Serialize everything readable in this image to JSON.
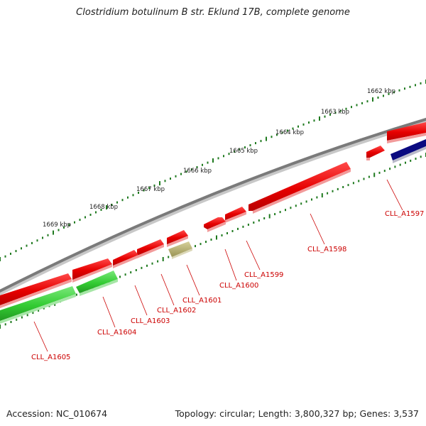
{
  "title": "Clostridium botulinum B str. Eklund 17B, complete genome",
  "footer": {
    "accession": "Accession: NC_010674",
    "summary": "Topology: circular; Length: 3,800,327 bp; Genes: 3,537"
  },
  "colors": {
    "forward_gene": "#e60000",
    "reverse_gene": "#33cc33",
    "rna_gene": "#0a0a80",
    "other_gene": "#b5ae6a",
    "backbone": "#7a7a7a",
    "tick": "#1f7a1f",
    "label": "#cc0000"
  },
  "ticks": [
    {
      "label": "1662 kbp"
    },
    {
      "label": "1663 kbp"
    },
    {
      "label": "1664 kbp"
    },
    {
      "label": "1665 kbp"
    },
    {
      "label": "1666 kbp"
    },
    {
      "label": "1667 kbp"
    },
    {
      "label": "1668 kbp"
    },
    {
      "label": "1669 kbp"
    }
  ],
  "genes": [
    {
      "name": "CLL_A1597",
      "strand": "forward"
    },
    {
      "name": "CLL_A1598",
      "strand": "forward"
    },
    {
      "name": "CLL_A1599",
      "strand": "forward"
    },
    {
      "name": "CLL_A1600",
      "strand": "forward"
    },
    {
      "name": "CLL_A1601",
      "strand": "other"
    },
    {
      "name": "CLL_A1602",
      "strand": "forward"
    },
    {
      "name": "CLL_A1603",
      "strand": "forward"
    },
    {
      "name": "CLL_A1604",
      "strand": "reverse"
    },
    {
      "name": "CLL_A1605",
      "strand": "reverse"
    }
  ]
}
